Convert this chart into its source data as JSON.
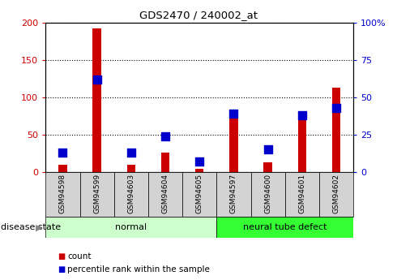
{
  "title": "GDS2470 / 240002_at",
  "samples": [
    "GSM94598",
    "GSM94599",
    "GSM94603",
    "GSM94604",
    "GSM94605",
    "GSM94597",
    "GSM94600",
    "GSM94601",
    "GSM94602"
  ],
  "count_values": [
    10,
    192,
    10,
    26,
    5,
    72,
    13,
    73,
    113
  ],
  "percentile_values": [
    13,
    62,
    13,
    24,
    7,
    39,
    15,
    38,
    43
  ],
  "normal_indices": [
    0,
    1,
    2,
    3,
    4
  ],
  "defect_indices": [
    5,
    6,
    7,
    8
  ],
  "count_color": "#cc0000",
  "percentile_color": "#0000cc",
  "left_ylim": [
    0,
    200
  ],
  "right_ylim": [
    0,
    100
  ],
  "left_yticks": [
    0,
    50,
    100,
    150,
    200
  ],
  "right_yticks": [
    0,
    25,
    50,
    75,
    100
  ],
  "left_yticklabels": [
    "0",
    "50",
    "100",
    "150",
    "200"
  ],
  "right_yticklabels": [
    "0",
    "25",
    "50",
    "75",
    "100%"
  ],
  "normal_label": "normal",
  "defect_label": "neural tube defect",
  "disease_state_label": "disease state",
  "legend_count": "count",
  "legend_percentile": "percentile rank within the sample",
  "normal_bg": "#ccffcc",
  "defect_bg": "#33ff33",
  "tick_bg": "#d3d3d3",
  "bar_width": 0.25,
  "marker_size": 60
}
